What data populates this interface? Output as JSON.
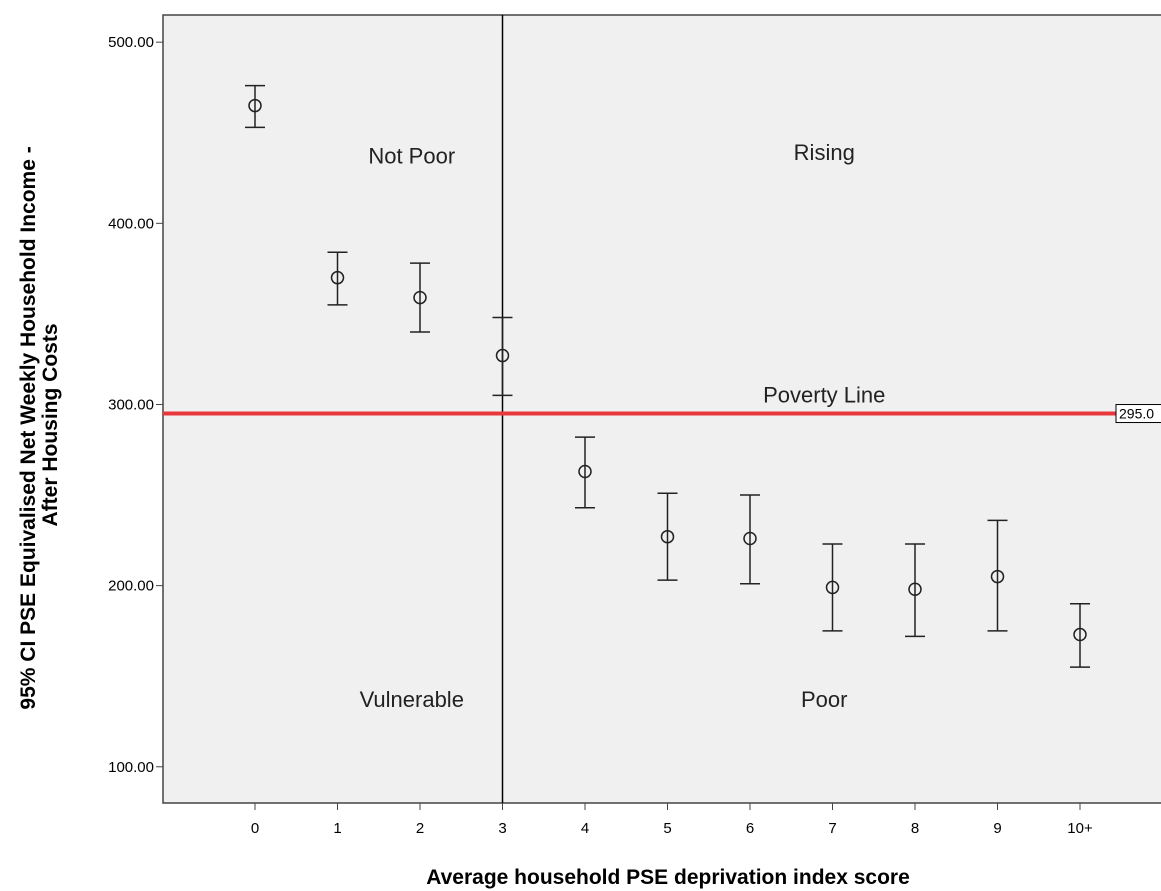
{
  "chart_data": {
    "type": "scatter",
    "subtype": "error-bar",
    "xlabel": "Average household PSE deprivation index score",
    "ylabel_lines": [
      "95% CI PSE Equivalised Net Weekly Household Income -",
      "After Housing Costs"
    ],
    "categories": [
      "0",
      "1",
      "2",
      "3",
      "4",
      "5",
      "6",
      "7",
      "8",
      "9",
      "10+"
    ],
    "ylim": [
      80,
      515
    ],
    "y_ticks": [
      100,
      200,
      300,
      400,
      500
    ],
    "y_tick_labels": [
      "100.00",
      "200.00",
      "300.00",
      "400.00",
      "500.00"
    ],
    "means": [
      465,
      370,
      359,
      327,
      263,
      227,
      226,
      199,
      198,
      205,
      173
    ],
    "lower": [
      453,
      355,
      340,
      305,
      243,
      203,
      201,
      175,
      172,
      175,
      155
    ],
    "upper": [
      476,
      384,
      378,
      348,
      282,
      251,
      250,
      223,
      223,
      236,
      190
    ],
    "marker": "circle",
    "grid": false,
    "plot_background": "#f0f0f0",
    "reference_lines": {
      "horizontal": {
        "value": 295,
        "label": "295.0",
        "color": "#e8383b"
      },
      "vertical": {
        "category": "3",
        "color": "#000000"
      }
    },
    "annotations": [
      {
        "text": "Not Poor",
        "x": 1.9,
        "y": 433
      },
      {
        "text": "Rising",
        "x": 6.9,
        "y": 435
      },
      {
        "text": "Poverty Line",
        "x": 6.9,
        "y": 301
      },
      {
        "text": "Vulnerable",
        "x": 1.9,
        "y": 133
      },
      {
        "text": "Poor",
        "x": 6.9,
        "y": 133
      }
    ]
  }
}
